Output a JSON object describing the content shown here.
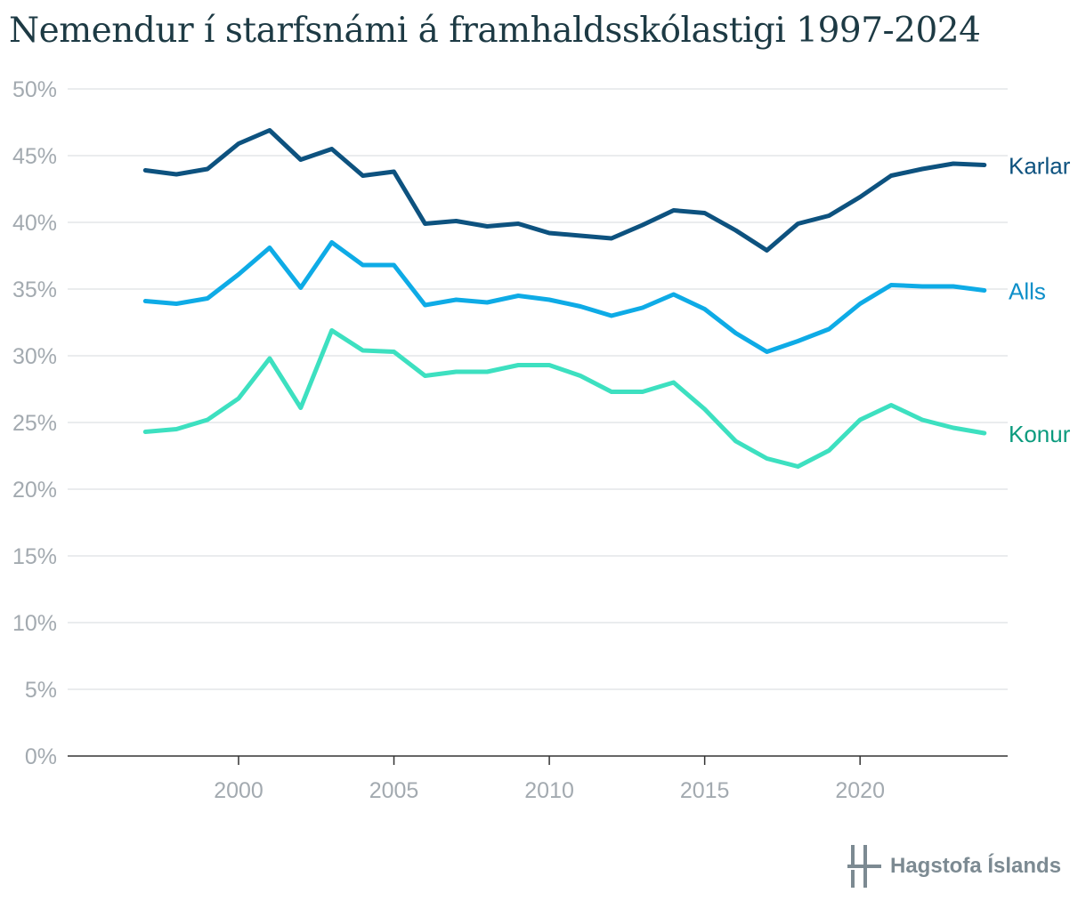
{
  "title": "Nemendur í starfsnámi á framhaldsskólastigi 1997-2024",
  "logo_text": "Hagstofa Íslands",
  "chart_data": {
    "type": "line",
    "title": "Nemendur í starfsnámi á framhaldsskólastigi 1997-2024",
    "x": [
      1997,
      1998,
      1999,
      2000,
      2001,
      2002,
      2003,
      2004,
      2005,
      2006,
      2007,
      2008,
      2009,
      2010,
      2011,
      2012,
      2013,
      2014,
      2015,
      2016,
      2017,
      2018,
      2019,
      2020,
      2021,
      2022,
      2023,
      2024
    ],
    "x_ticks": [
      "2000",
      "2005",
      "2010",
      "2015",
      "2020"
    ],
    "y_ticks": [
      "0%",
      "5%",
      "10%",
      "15%",
      "20%",
      "25%",
      "30%",
      "35%",
      "40%",
      "45%",
      "50%"
    ],
    "ylim": [
      0,
      50
    ],
    "y_unit": "%",
    "grid": true,
    "legend": "inline-right",
    "series": [
      {
        "name": "Karlar",
        "color": "#0d527f",
        "values": [
          43.9,
          43.6,
          44.0,
          45.9,
          46.9,
          44.7,
          45.5,
          43.5,
          43.8,
          39.9,
          40.1,
          39.7,
          39.9,
          39.2,
          39.0,
          38.8,
          39.8,
          40.9,
          40.7,
          39.4,
          37.9,
          39.9,
          40.5,
          41.9,
          43.5,
          44.0,
          44.4,
          44.3
        ]
      },
      {
        "name": "Alls",
        "color": "#0eabe6",
        "values": [
          34.1,
          33.9,
          34.3,
          36.1,
          38.1,
          35.1,
          38.5,
          36.8,
          36.8,
          33.8,
          34.2,
          34.0,
          34.5,
          34.2,
          33.7,
          33.0,
          33.6,
          34.6,
          33.5,
          31.7,
          30.3,
          31.1,
          32.0,
          33.9,
          35.3,
          35.2,
          35.2,
          34.9
        ]
      },
      {
        "name": "Konur",
        "color": "#3de0c0",
        "values": [
          24.3,
          24.5,
          25.2,
          26.8,
          29.8,
          26.1,
          31.9,
          30.4,
          30.3,
          28.5,
          28.8,
          28.8,
          29.3,
          29.3,
          28.5,
          27.3,
          27.3,
          28.0,
          26.0,
          23.6,
          22.3,
          21.7,
          22.9,
          25.2,
          26.3,
          25.2,
          24.6,
          24.2
        ]
      }
    ]
  },
  "label_colors": {
    "Karlar": "#0d527f",
    "Alls": "#0d8fc9",
    "Konur": "#0c9b7e"
  }
}
